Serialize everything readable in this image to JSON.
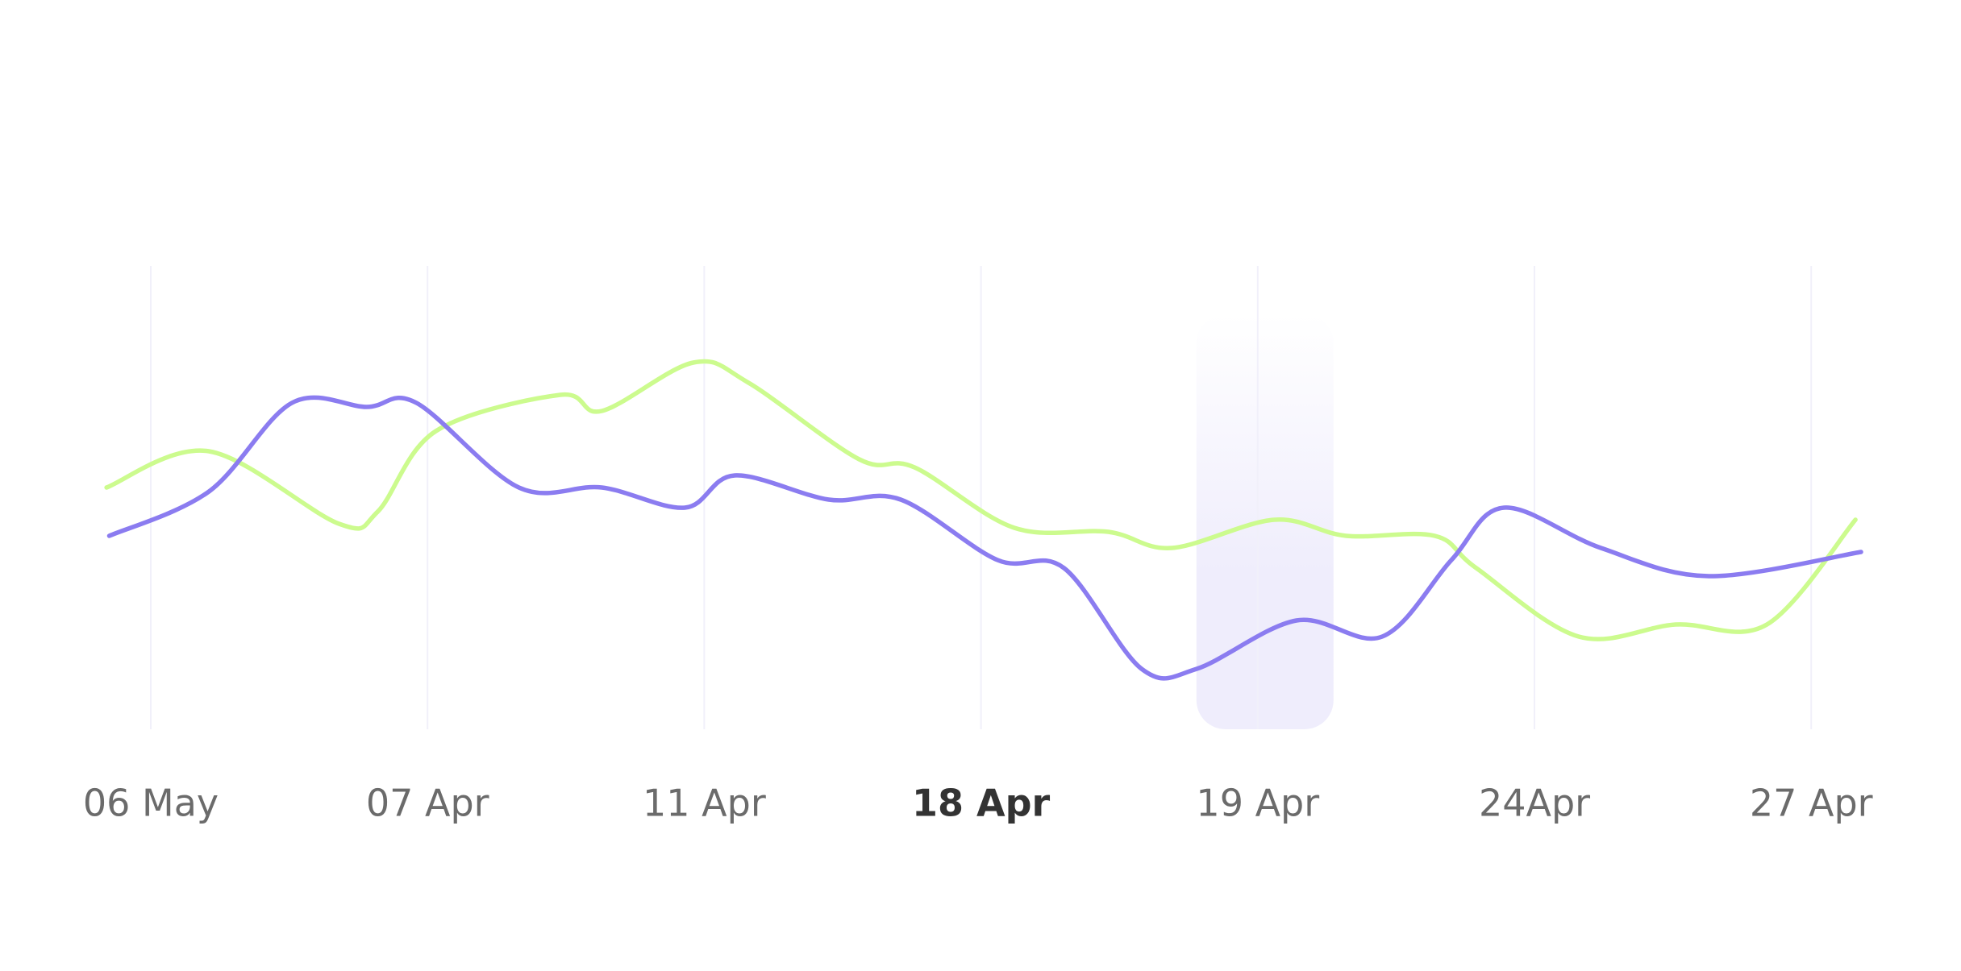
{
  "chart_data": {
    "type": "line",
    "title": "",
    "xlabel": "",
    "ylabel": "",
    "categories": [
      "06 May",
      "07 Apr",
      "11 Apr",
      "18 Apr",
      "19 Apr",
      "24Apr",
      "27 Apr"
    ],
    "active_category": "18 Apr",
    "highlighted_band": "19 Apr",
    "ylim": [
      0,
      100
    ],
    "grid": "vertical",
    "legend": "none",
    "colors": {
      "series_green": "#ccfb8e",
      "series_purple": "#8b7cf0",
      "gridline": "#f1f0fa",
      "band_top": "#ffffff",
      "band_bottom": "#efedfc",
      "tick_label": "#6b6b6b",
      "tick_label_active": "#333333"
    },
    "series": [
      {
        "color_key": "series_green",
        "points": [
          [
            -0.16,
            53
          ],
          [
            0.21,
            62
          ],
          [
            0.68,
            44
          ],
          [
            0.82,
            47
          ],
          [
            1.03,
            67
          ],
          [
            1.48,
            76
          ],
          [
            1.63,
            72
          ],
          [
            1.96,
            84
          ],
          [
            2.16,
            79
          ],
          [
            2.56,
            60
          ],
          [
            2.76,
            58
          ],
          [
            3.12,
            43
          ],
          [
            3.46,
            42
          ],
          [
            3.69,
            38
          ],
          [
            4.06,
            45
          ],
          [
            4.32,
            41
          ],
          [
            4.64,
            41
          ],
          [
            4.79,
            33
          ],
          [
            5.16,
            16
          ],
          [
            5.51,
            19
          ],
          [
            5.84,
            19
          ],
          [
            6.16,
            45
          ]
        ]
      },
      {
        "color_key": "series_purple",
        "points": [
          [
            -0.15,
            41
          ],
          [
            0.21,
            52
          ],
          [
            0.51,
            74
          ],
          [
            0.78,
            73
          ],
          [
            0.96,
            74
          ],
          [
            1.33,
            53
          ],
          [
            1.63,
            53
          ],
          [
            1.93,
            48
          ],
          [
            2.11,
            56
          ],
          [
            2.45,
            50
          ],
          [
            2.71,
            50
          ],
          [
            3.06,
            35
          ],
          [
            3.3,
            33
          ],
          [
            3.58,
            8
          ],
          [
            3.78,
            8
          ],
          [
            4.14,
            20
          ],
          [
            4.45,
            16
          ],
          [
            4.7,
            35
          ],
          [
            4.89,
            48
          ],
          [
            5.24,
            38
          ],
          [
            5.63,
            31
          ],
          [
            6.18,
            37
          ]
        ]
      }
    ]
  }
}
